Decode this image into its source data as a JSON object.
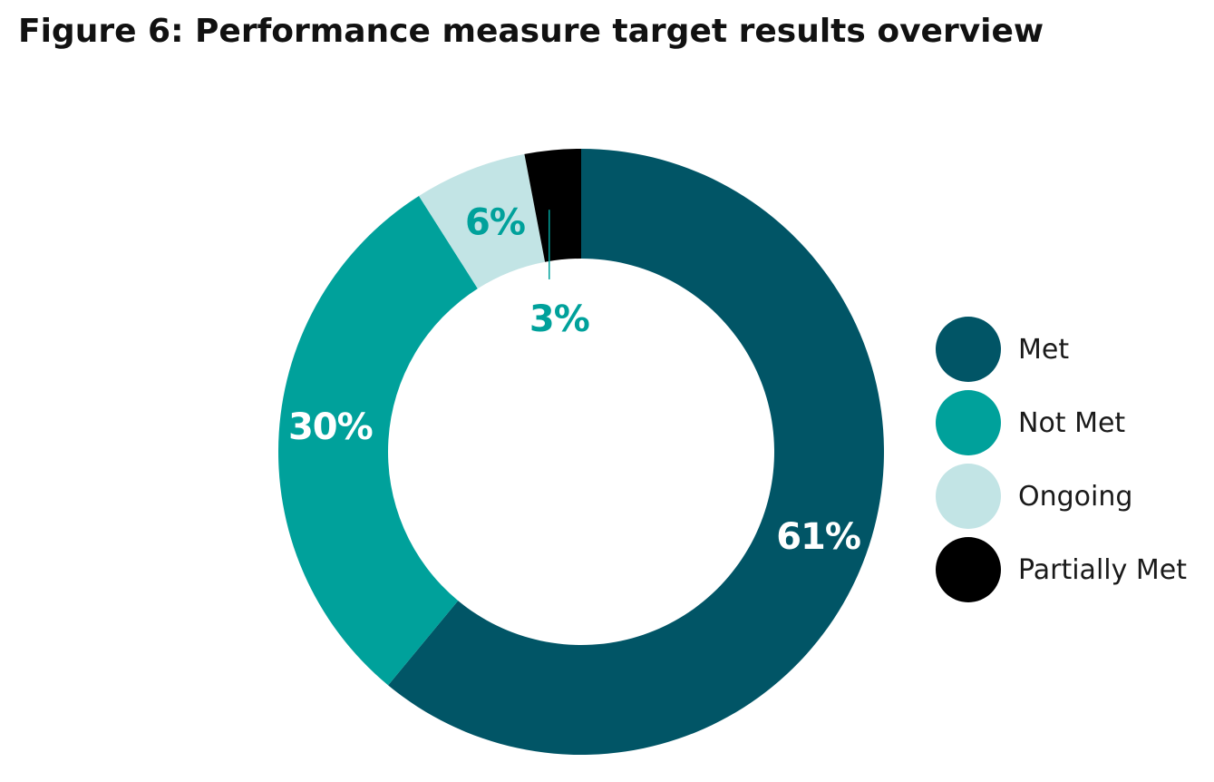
{
  "title": "Figure 6: Performance measure target results overview",
  "chart_data": {
    "type": "pie",
    "variant": "donut",
    "categories": [
      "Met",
      "Not Met",
      "Ongoing",
      "Partially Met"
    ],
    "values": [
      61,
      30,
      6,
      3
    ],
    "labels": [
      "61%",
      "30%",
      "6%",
      "3%"
    ],
    "colors": [
      "#015566",
      "#00a19b",
      "#c2e4e5",
      "#000000"
    ],
    "label_colors": [
      "#ffffff",
      "#ffffff",
      "#00a19b",
      "#00a19b"
    ],
    "legend_position": "right"
  },
  "legend": {
    "items": [
      {
        "label": "Met",
        "color": "#015566"
      },
      {
        "label": "Not Met",
        "color": "#00a19b"
      },
      {
        "label": "Ongoing",
        "color": "#c2e4e5"
      },
      {
        "label": "Partially Met",
        "color": "#000000"
      }
    ]
  }
}
